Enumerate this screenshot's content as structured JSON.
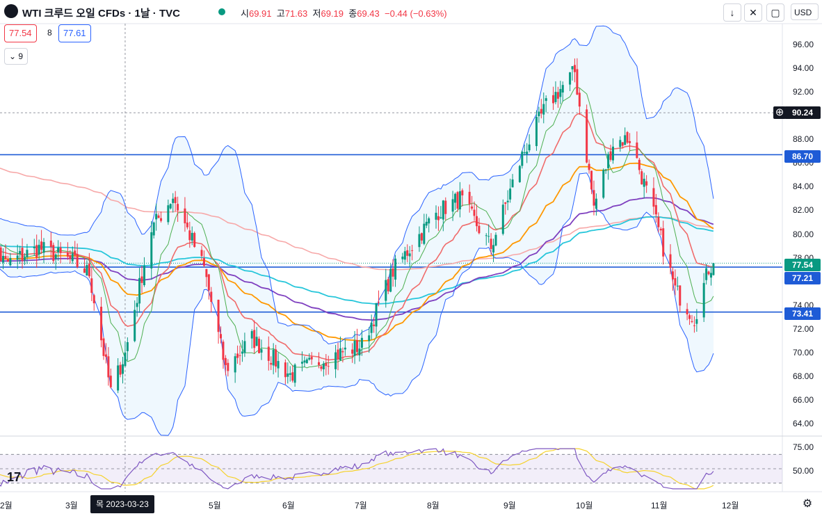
{
  "header": {
    "title": "WTI 크루드 오일 CFDs · 1날 · TVC",
    "open_key": "시",
    "open": "69.91",
    "high_key": "고",
    "high": "71.63",
    "low_key": "저",
    "low": "69.19",
    "close_key": "종",
    "close": "69.43",
    "change": "−0.44 (−0.63%)",
    "currency": "USD",
    "sell_price": "77.54",
    "spread": "8",
    "buy_price": "77.61",
    "indicators_count": "9"
  },
  "colors": {
    "up": "#089981",
    "down": "#f23645",
    "bb": "#2962ff",
    "sma10": "#4caf50",
    "ema20": "#f06b6b",
    "ema50": "#ff9800",
    "ema100": "#7e3fbf",
    "ema150": "#26c6da",
    "ema200": "#f7a8a8",
    "level": "#1e5bd6",
    "rsi": "#7e57c2",
    "rsi_ma": "#f5d22c"
  },
  "chart_data": {
    "type": "candlestick",
    "y_axis": {
      "min": 64,
      "max": 96,
      "ticks": [
        "96.00",
        "94.00",
        "92.00",
        "90.00",
        "88.00",
        "86.00",
        "84.00",
        "82.00",
        "80.00",
        "78.00",
        "76.00",
        "74.00",
        "72.00",
        "70.00",
        "68.00",
        "66.00",
        "64.00"
      ]
    },
    "x_axis_labels": [
      "2월",
      "3월",
      "5월",
      "6월",
      "7월",
      "8월",
      "9월",
      "10월",
      "11월",
      "12월"
    ],
    "crosshair_date": "목 2023-03-23",
    "price_tags": [
      {
        "label": "90.24",
        "kind": "crosshair"
      },
      {
        "label": "86.70",
        "kind": "level"
      },
      {
        "label": "77.54",
        "kind": "last"
      },
      {
        "label": "77.21",
        "kind": "level"
      },
      {
        "label": "73.41",
        "kind": "level"
      }
    ],
    "horizontal_levels": [
      86.7,
      77.21,
      73.41
    ],
    "close_path": [
      [
        "2023-01-20",
        80.5
      ],
      [
        "2023-02-01",
        77.5
      ],
      [
        "2023-02-15",
        78.8
      ],
      [
        "2023-03-01",
        77.7
      ],
      [
        "2023-03-08",
        76.7
      ],
      [
        "2023-03-17",
        66.7
      ],
      [
        "2023-03-23",
        69.9
      ],
      [
        "2023-04-03",
        80.4
      ],
      [
        "2023-04-12",
        83.2
      ],
      [
        "2023-04-25",
        77.1
      ],
      [
        "2023-05-04",
        68.6
      ],
      [
        "2023-05-15",
        71.2
      ],
      [
        "2023-05-31",
        68.1
      ],
      [
        "2023-06-13",
        69.4
      ],
      [
        "2023-06-30",
        70.6
      ],
      [
        "2023-07-13",
        76.9
      ],
      [
        "2023-07-31",
        81.8
      ],
      [
        "2023-08-10",
        83.0
      ],
      [
        "2023-08-23",
        78.9
      ],
      [
        "2023-09-05",
        86.6
      ],
      [
        "2023-09-15",
        90.8
      ],
      [
        "2023-09-27",
        93.7
      ],
      [
        "2023-10-05",
        82.3
      ],
      [
        "2023-10-13",
        87.7
      ],
      [
        "2023-10-20",
        88.1
      ],
      [
        "2023-10-31",
        81.0
      ],
      [
        "2023-11-08",
        75.3
      ],
      [
        "2023-11-16",
        72.9
      ],
      [
        "2023-11-22",
        77.1
      ],
      [
        "2023-11-24",
        77.5
      ]
    ],
    "rsi": {
      "levels": [
        70,
        50,
        30
      ],
      "ticks": [
        "75.00",
        "50.00"
      ],
      "last": 47,
      "ma_last": 44
    }
  },
  "brand": "17"
}
